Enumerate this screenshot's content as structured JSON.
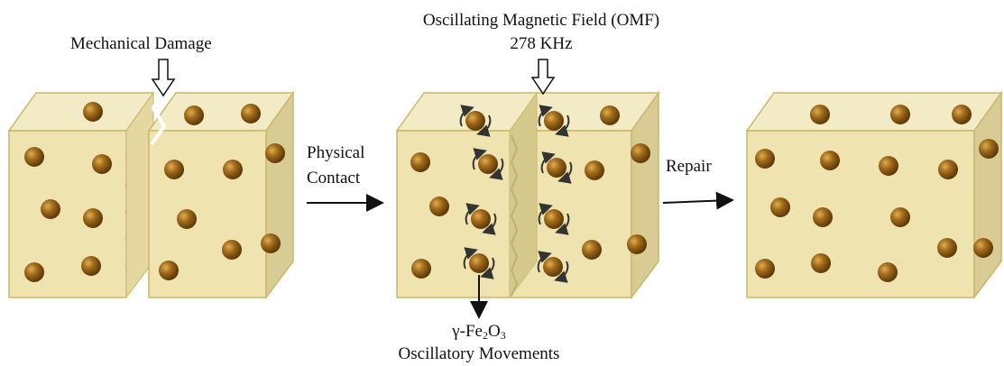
{
  "labels": {
    "mechanical_damage": "Mechanical Damage",
    "omf_title": "Oscillating Magnetic Field (OMF)",
    "omf_frequency": "278 KHz",
    "physical_contact_line1": "Physical",
    "physical_contact_line2": "Contact",
    "repair": "Repair",
    "particle_gamma": "γ-Fe",
    "particle_sub1": "2",
    "particle_o": "O",
    "particle_sub2": "3",
    "oscillatory_movements": "Oscillatory Movements"
  },
  "colors": {
    "cube_front": "#efe3b0",
    "cube_top": "#f3ebc6",
    "cube_side": "#d8cb94",
    "cube_edge": "#c9b869",
    "particle": "#8a5a14",
    "particle_highlight": "#d8a544",
    "arrow": "#111111",
    "rotation_arrow": "#333333"
  },
  "icons": [
    "hollow-down-arrow-icon",
    "rotation-arrows-icon",
    "right-arrow-icon"
  ]
}
